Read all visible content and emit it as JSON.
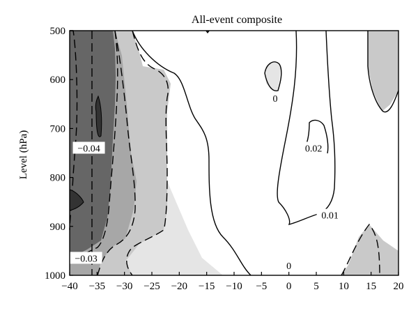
{
  "chart_data": {
    "type": "contour",
    "title": "All-event composite",
    "xlabel": "",
    "ylabel": "Level (hPa)",
    "xlim": [
      -40,
      20
    ],
    "ylim": [
      1000,
      500
    ],
    "x_ticks": [
      "−40",
      "−35",
      "−30",
      "−25",
      "−20",
      "−15",
      "−10",
      "−5",
      "0",
      "5",
      "10",
      "15",
      "20"
    ],
    "y_ticks": [
      "500",
      "600",
      "700",
      "800",
      "900",
      "1000"
    ],
    "contour_levels": [
      -0.04,
      -0.03,
      -0.02,
      -0.01,
      0,
      0.01,
      0.02
    ],
    "negative_contours_dashed": true,
    "contour_labels": [
      {
        "text": "−0.04",
        "x": -36.5,
        "y": 740
      },
      {
        "text": "−0.03",
        "x": -37,
        "y": 965
      },
      {
        "text": "0",
        "x": -2.5,
        "y": 638
      },
      {
        "text": "0.02",
        "x": 4.5,
        "y": 740
      },
      {
        "text": "0.01",
        "x": 7.5,
        "y": 877
      },
      {
        "text": "0",
        "x": 0,
        "y": 980
      }
    ],
    "colors": {
      "lt_minus_0_04": "#666666",
      "minus_0_04_to_minus_0_03": "#a7a7a7",
      "minus_0_03_to_minus_0_01": "#c9c9c9",
      "minus_0_01_to_0": "#e5e5e5",
      "gt_0": "#ffffff"
    },
    "grid": false
  }
}
